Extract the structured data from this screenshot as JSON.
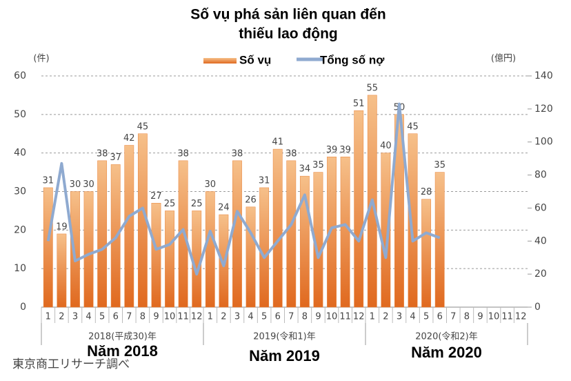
{
  "chart_data": {
    "type": "combo",
    "title": [
      "Số vụ phá sản liên quan đến",
      "thiếu lao động"
    ],
    "ylabel": "(件)",
    "y2label": "(億円)",
    "categories": [
      "1",
      "2",
      "3",
      "4",
      "5",
      "6",
      "7",
      "8",
      "9",
      "10",
      "11",
      "12",
      "1",
      "2",
      "3",
      "4",
      "5",
      "6",
      "7",
      "8",
      "9",
      "10",
      "11",
      "12",
      "1",
      "2",
      "3",
      "4",
      "5",
      "6",
      "7",
      "8",
      "9",
      "10",
      "11",
      "12"
    ],
    "groups": [
      {
        "label": "2018(平成30)年",
        "caption": "Năm 2018"
      },
      {
        "label": "2019(令和1)年",
        "caption": "Năm 2019"
      },
      {
        "label": "2020(令和2)年",
        "caption": "Năm 2020"
      }
    ],
    "series": [
      {
        "name": "Số vụ",
        "type": "bar",
        "color": "#e8823a",
        "values": [
          31,
          19,
          30,
          30,
          38,
          37,
          42,
          45,
          27,
          25,
          38,
          25,
          30,
          24,
          38,
          26,
          31,
          41,
          38,
          34,
          35,
          39,
          39,
          51,
          55,
          40,
          50,
          45,
          28,
          35,
          null,
          null,
          null,
          null,
          null,
          null
        ]
      },
      {
        "name": "Tổng số nợ",
        "type": "line",
        "axis": "y2",
        "color": "#8faad0",
        "values": [
          40,
          87,
          28,
          32,
          35,
          42,
          55,
          60,
          35,
          38,
          47,
          20,
          46,
          25,
          58,
          45,
          30,
          40,
          50,
          68,
          30,
          48,
          50,
          40,
          65,
          30,
          123,
          40,
          45,
          42,
          null,
          null,
          null,
          null,
          null,
          null
        ]
      }
    ],
    "ylim": [
      0,
      60
    ],
    "yticks": [
      0,
      10,
      20,
      30,
      40,
      50,
      60
    ],
    "y2lim": [
      0,
      140
    ],
    "y2ticks": [
      0,
      20,
      40,
      60,
      80,
      100,
      120,
      140
    ],
    "grid": true,
    "source": "東京商工リサーチ調べ"
  }
}
